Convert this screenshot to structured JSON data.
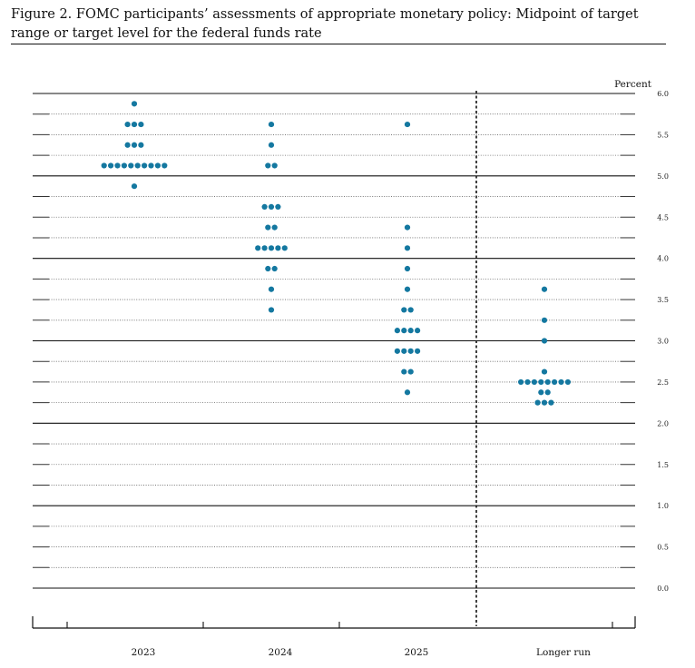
{
  "title": "Figure 2.  FOMC participants’ assessments of appropriate monetary policy: Midpoint of target range or target level for the federal funds rate",
  "chart_data": {
    "type": "scatter",
    "title": "Figure 2.  FOMC participants’ assessments of appropriate monetary policy: Midpoint of target range or target level for the federal funds rate",
    "ylabel": "Percent",
    "categories": [
      "2023",
      "2024",
      "2025",
      "Longer run"
    ],
    "ylim": [
      0,
      6
    ],
    "yticks": [
      "0.0",
      "0.5",
      "1.0",
      "1.5",
      "2.0",
      "2.5",
      "3.0",
      "3.5",
      "4.0",
      "4.5",
      "5.0",
      "5.5",
      "6.0"
    ],
    "dot_color": "#1478a0",
    "series": [
      {
        "category": "2023",
        "points": [
          {
            "y": 5.875,
            "count": 1
          },
          {
            "y": 5.625,
            "count": 3
          },
          {
            "y": 5.375,
            "count": 3
          },
          {
            "y": 5.125,
            "count": 10
          },
          {
            "y": 4.875,
            "count": 1
          }
        ]
      },
      {
        "category": "2024",
        "points": [
          {
            "y": 5.625,
            "count": 1
          },
          {
            "y": 5.375,
            "count": 1
          },
          {
            "y": 5.125,
            "count": 2
          },
          {
            "y": 4.625,
            "count": 3
          },
          {
            "y": 4.375,
            "count": 2
          },
          {
            "y": 4.125,
            "count": 5
          },
          {
            "y": 3.875,
            "count": 2
          },
          {
            "y": 3.625,
            "count": 1
          },
          {
            "y": 3.375,
            "count": 1
          }
        ]
      },
      {
        "category": "2025",
        "points": [
          {
            "y": 5.625,
            "count": 1
          },
          {
            "y": 4.375,
            "count": 1
          },
          {
            "y": 4.125,
            "count": 1
          },
          {
            "y": 3.875,
            "count": 1
          },
          {
            "y": 3.625,
            "count": 1
          },
          {
            "y": 3.375,
            "count": 2
          },
          {
            "y": 3.125,
            "count": 4
          },
          {
            "y": 2.875,
            "count": 4
          },
          {
            "y": 2.625,
            "count": 2
          },
          {
            "y": 2.375,
            "count": 1
          }
        ]
      },
      {
        "category": "Longer run",
        "points": [
          {
            "y": 3.625,
            "count": 1
          },
          {
            "y": 3.25,
            "count": 1
          },
          {
            "y": 3.0,
            "count": 1
          },
          {
            "y": 2.625,
            "count": 1
          },
          {
            "y": 2.5,
            "count": 8
          },
          {
            "y": 2.375,
            "count": 2
          },
          {
            "y": 2.25,
            "count": 3
          }
        ]
      }
    ]
  }
}
